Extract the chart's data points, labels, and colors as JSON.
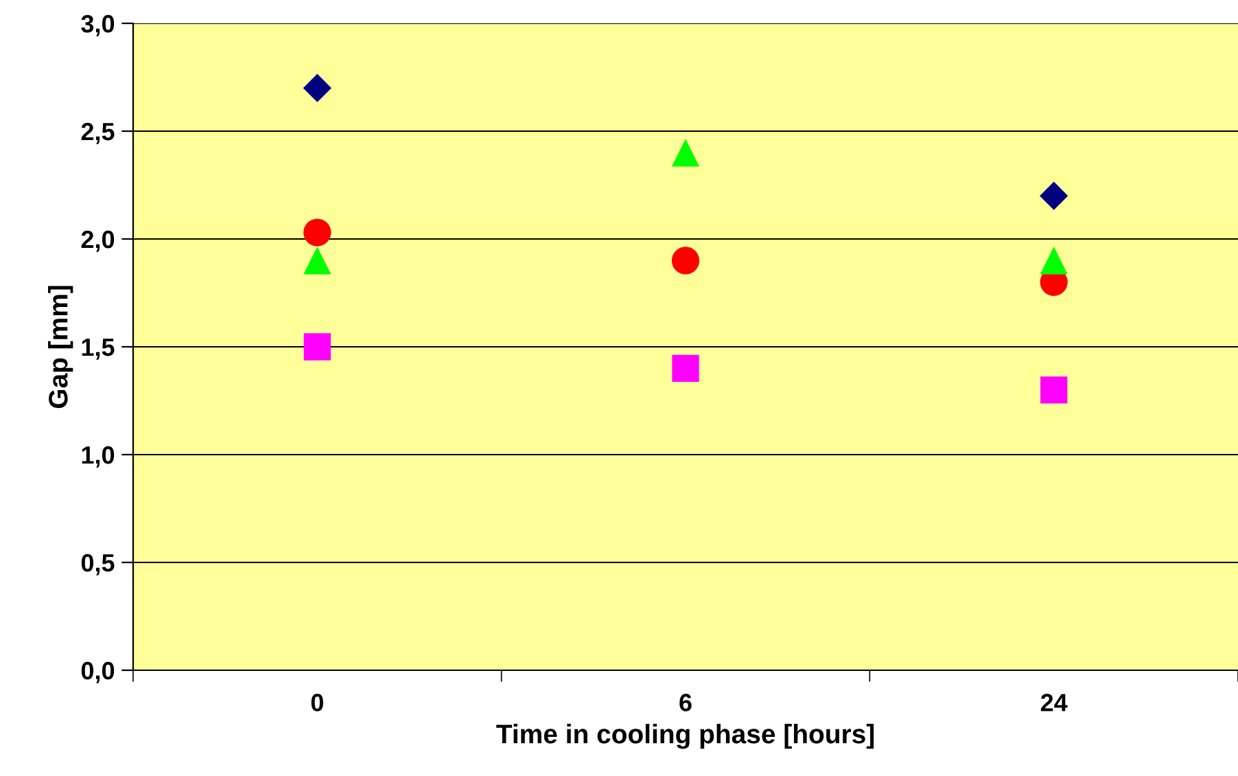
{
  "chart_data": {
    "type": "scatter",
    "xlabel": "Time in cooling phase [hours]",
    "ylabel": "Gap [mm]",
    "categories": [
      "0",
      "6",
      "24"
    ],
    "series": [
      {
        "color": "#000080",
        "marker": "diamond",
        "values": [
          2.7,
          null,
          2.2
        ]
      },
      {
        "color": "#ff0000",
        "marker": "circle",
        "values": [
          2.03,
          1.9,
          1.8
        ]
      },
      {
        "color": "#00ff00",
        "marker": "triangle",
        "values": [
          1.9,
          2.4,
          1.9
        ]
      },
      {
        "color": "#ff00ff",
        "marker": "square",
        "values": [
          1.5,
          1.4,
          1.3
        ]
      }
    ],
    "ylim": [
      0,
      3
    ],
    "yticks": [
      {
        "value": 0,
        "label": "0,0"
      },
      {
        "value": 0.5,
        "label": "0,5"
      },
      {
        "value": 1,
        "label": "1,0"
      },
      {
        "value": 1.5,
        "label": "1,5"
      },
      {
        "value": 2,
        "label": "2,0"
      },
      {
        "value": 2.5,
        "label": "2,5"
      },
      {
        "value": 3,
        "label": "3,0"
      }
    ],
    "grid": "y",
    "legend": false
  }
}
